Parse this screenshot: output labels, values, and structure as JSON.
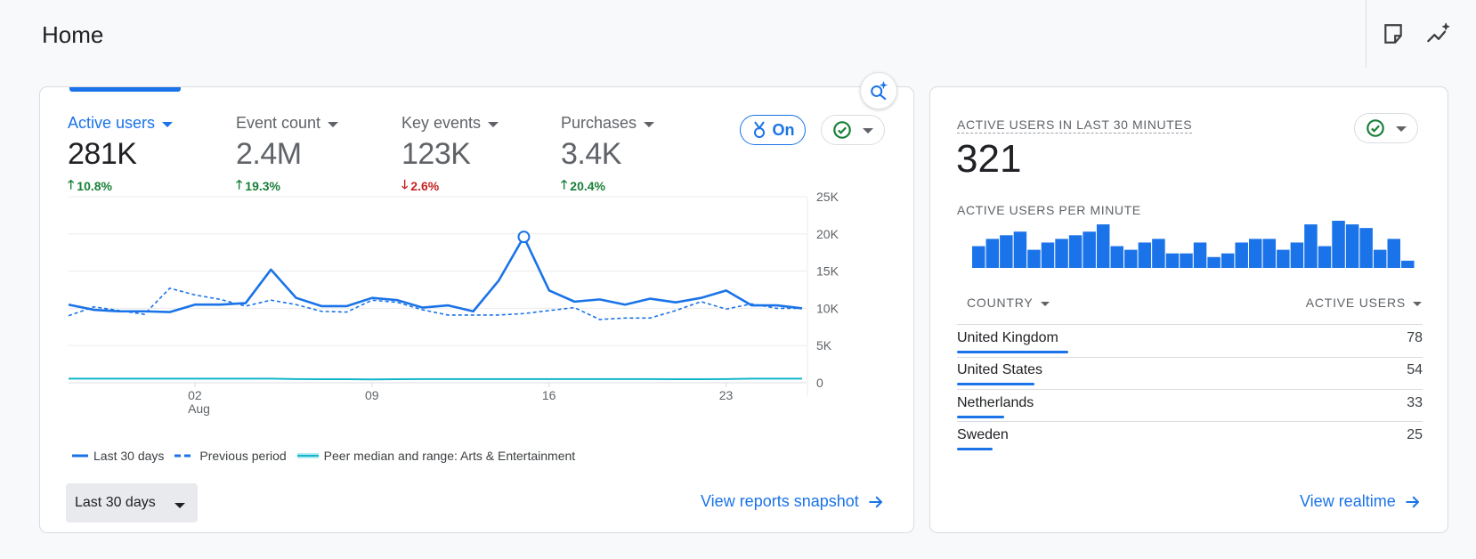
{
  "header": {
    "title": "Home"
  },
  "main": {
    "metrics": [
      {
        "label": "Active users",
        "value": "281K",
        "change": "10.8%",
        "direction": "up",
        "selected": true
      },
      {
        "label": "Event count",
        "value": "2.4M",
        "change": "19.3%",
        "direction": "up",
        "selected": false
      },
      {
        "label": "Key events",
        "value": "123K",
        "change": "2.6%",
        "direction": "down",
        "selected": false
      },
      {
        "label": "Purchases",
        "value": "3.4K",
        "change": "20.4%",
        "direction": "up",
        "selected": false
      }
    ],
    "benchmark_toggle": "On",
    "legend": {
      "current": "Last 30 days",
      "previous": "Previous period",
      "peer": "Peer median and range: Arts & Entertainment"
    },
    "date_range": "Last 30 days",
    "view_link": "View reports snapshot"
  },
  "realtime": {
    "title": "ACTIVE USERS IN LAST 30 MINUTES",
    "value": "321",
    "per_minute_label": "ACTIVE USERS PER MINUTE",
    "per_minute_values": [
      6,
      8,
      9,
      10,
      5,
      7,
      8,
      9,
      10,
      12,
      6,
      5,
      7,
      8,
      4,
      4,
      7,
      3,
      4,
      7,
      8,
      8,
      5,
      7,
      12,
      6,
      13,
      12,
      11,
      5,
      8,
      2
    ],
    "col_country": "COUNTRY",
    "col_users": "ACTIVE USERS",
    "rows": [
      {
        "country": "United Kingdom",
        "users": "78",
        "value": 78
      },
      {
        "country": "United States",
        "users": "54",
        "value": 54
      },
      {
        "country": "Netherlands",
        "users": "33",
        "value": 33
      },
      {
        "country": "Sweden",
        "users": "25",
        "value": 25
      }
    ],
    "view_link": "View realtime"
  },
  "chart_data": {
    "type": "line",
    "x_tick_labels": [
      "02",
      "Aug",
      "09",
      "16",
      "23"
    ],
    "y_tick_labels": [
      "25K",
      "20K",
      "15K",
      "10K",
      "5K",
      "0"
    ],
    "ylim": [
      0,
      25000
    ],
    "grid": true,
    "legend_position": "bottom",
    "series": [
      {
        "name": "Last 30 days",
        "style": "solid",
        "color": "#1a73e8",
        "values": [
          10500,
          9800,
          9600,
          9600,
          9500,
          10500,
          10500,
          10700,
          15200,
          11400,
          10300,
          10300,
          11400,
          11100,
          10100,
          10400,
          9600,
          13700,
          19600,
          12400,
          10900,
          11200,
          10500,
          11300,
          10800,
          11400,
          12400,
          10400,
          10400,
          10000
        ]
      },
      {
        "name": "Previous period",
        "style": "dashed",
        "color": "#1a73e8",
        "values": [
          9000,
          10200,
          9700,
          9200,
          12700,
          11800,
          11200,
          10300,
          11100,
          10500,
          9600,
          9500,
          11100,
          10800,
          9800,
          9100,
          9100,
          9100,
          9300,
          9700,
          10100,
          8500,
          8700,
          8700,
          9700,
          10900,
          9900,
          10600,
          10000,
          10000
        ]
      },
      {
        "name": "Peer median and range: Arts & Entertainment",
        "style": "band",
        "color": "#12b5cb",
        "values": [
          550,
          550,
          550,
          550,
          550,
          550,
          550,
          550,
          550,
          500,
          480,
          480,
          450,
          480,
          500,
          500,
          500,
          500,
          500,
          500,
          500,
          500,
          500,
          500,
          480,
          480,
          500,
          550,
          550,
          550
        ]
      }
    ]
  }
}
